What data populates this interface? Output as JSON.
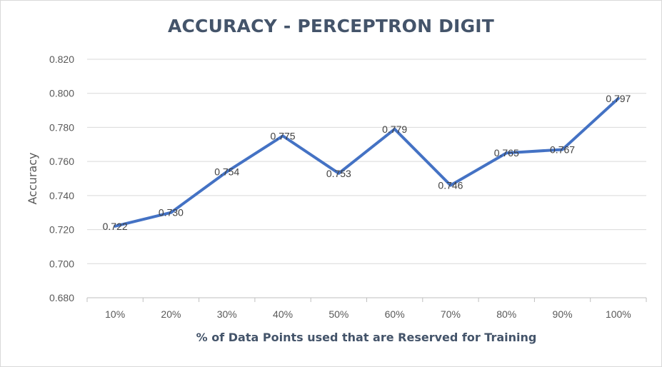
{
  "chart_data": {
    "type": "line",
    "title": "ACCURACY - PERCEPTRON DIGIT",
    "xlabel": "% of Data Points used that are Reserved for Training",
    "ylabel": "Accuracy",
    "categories": [
      "10%",
      "20%",
      "30%",
      "40%",
      "50%",
      "60%",
      "70%",
      "80%",
      "90%",
      "100%"
    ],
    "series": [
      {
        "values": [
          0.722,
          0.73,
          0.754,
          0.775,
          0.753,
          0.779,
          0.746,
          0.765,
          0.767,
          0.797
        ],
        "labels": [
          "0.722",
          "0.730",
          "0.754",
          "0.775",
          "0.753",
          "0.779",
          "0.746",
          "0.765",
          "0.767",
          "0.797"
        ],
        "color": "#4472c4"
      }
    ],
    "ylim": [
      0.68,
      0.82
    ],
    "yticks": [
      "0.680",
      "0.700",
      "0.720",
      "0.740",
      "0.760",
      "0.780",
      "0.800",
      "0.820"
    ],
    "grid": true,
    "legend": "none"
  }
}
